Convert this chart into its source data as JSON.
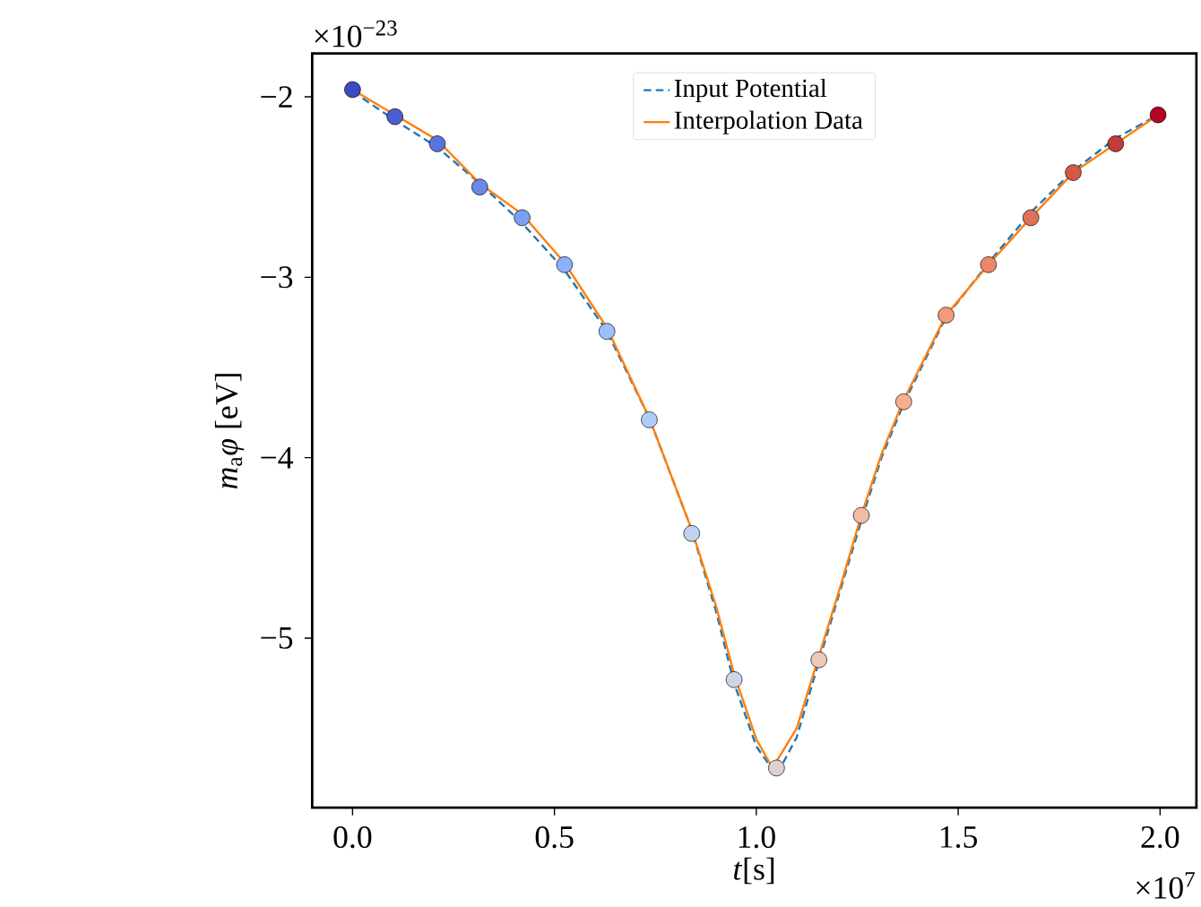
{
  "chart_data": {
    "type": "line",
    "xlabel": "*t*[s]",
    "ylabel": "*m*$_{a}$*φ* [eV]",
    "annotations": [
      "×10$^{7}$",
      "×10$^{−23}$"
    ],
    "xlim": [
      -0.1,
      2.09
    ],
    "ylim": [
      -5.94,
      -1.76
    ],
    "xticks": [
      {
        "value": 0,
        "label": "0.0"
      },
      {
        "value": 0.5,
        "label": "0.5"
      },
      {
        "value": 1,
        "label": "1.0"
      },
      {
        "value": 1.5,
        "label": "1.5"
      },
      {
        "value": 2,
        "label": "2.0"
      }
    ],
    "yticks": [
      {
        "value": -5,
        "label": "−5"
      },
      {
        "value": -4,
        "label": "−4"
      },
      {
        "value": -3,
        "label": "−3"
      },
      {
        "value": -2,
        "label": "−2"
      }
    ],
    "legend": "top",
    "grid": false,
    "series": [
      {
        "type": "scatter",
        "marker": "circle",
        "x": [
          0,
          0.105,
          0.21,
          0.315,
          0.42,
          0.525,
          0.63,
          0.735,
          0.84,
          0.945,
          1.05,
          1.155,
          1.26,
          1.365,
          1.47,
          1.575,
          1.68,
          1.785,
          1.89,
          1.995
        ],
        "values": [
          -1.96,
          -2.11,
          -2.26,
          -2.5,
          -2.67,
          -2.93,
          -3.3,
          -3.79,
          -4.42,
          -5.23,
          -5.72,
          -5.12,
          -4.32,
          -3.69,
          -3.21,
          -2.93,
          -2.67,
          -2.42,
          -2.26,
          -2.1
        ],
        "colors": [
          "#3b4cc0",
          "#4a5fd1",
          "#5a74dd",
          "#6a88e8",
          "#7b9ff2",
          "#8db0fb",
          "#9ebffe",
          "#b0ccf8",
          "#c1d2f0",
          "#d0d5e6",
          "#ddd2d0",
          "#ecc9b8",
          "#f2bca4",
          "#f4ae92",
          "#f29b7c",
          "#ec8767",
          "#e0705a",
          "#d4584a",
          "#c03b3a",
          "#b40426"
        ]
      },
      {
        "name": "Input Potential",
        "color": "#1f77b4",
        "line_style": "dashed",
        "x": [
          0,
          0.105,
          0.21,
          0.315,
          0.42,
          0.525,
          0.63,
          0.735,
          0.84,
          0.9,
          0.945,
          1.0,
          1.05,
          1.1,
          1.155,
          1.21,
          1.26,
          1.31,
          1.365,
          1.47,
          1.575,
          1.68,
          1.785,
          1.89,
          1.995
        ],
        "values": [
          -1.97,
          -2.13,
          -2.28,
          -2.48,
          -2.7,
          -2.96,
          -3.3,
          -3.78,
          -4.4,
          -4.85,
          -5.25,
          -5.6,
          -5.76,
          -5.55,
          -5.13,
          -4.72,
          -4.35,
          -4.0,
          -3.7,
          -3.22,
          -2.92,
          -2.64,
          -2.41,
          -2.23,
          -2.1
        ]
      },
      {
        "name": "Interpolation Data",
        "color": "#ff7f0e",
        "line_style": "solid",
        "x": [
          0,
          0.105,
          0.21,
          0.315,
          0.42,
          0.525,
          0.63,
          0.735,
          0.84,
          0.9,
          0.945,
          1.0,
          1.04,
          1.1,
          1.155,
          1.21,
          1.26,
          1.31,
          1.365,
          1.47,
          1.575,
          1.68,
          1.785,
          1.89,
          1.995
        ],
        "values": [
          -1.96,
          -2.1,
          -2.24,
          -2.48,
          -2.65,
          -2.92,
          -3.28,
          -3.78,
          -4.4,
          -4.82,
          -5.2,
          -5.56,
          -5.72,
          -5.5,
          -5.1,
          -4.7,
          -4.32,
          -3.98,
          -3.68,
          -3.21,
          -2.93,
          -2.67,
          -2.42,
          -2.26,
          -2.1
        ]
      }
    ]
  }
}
